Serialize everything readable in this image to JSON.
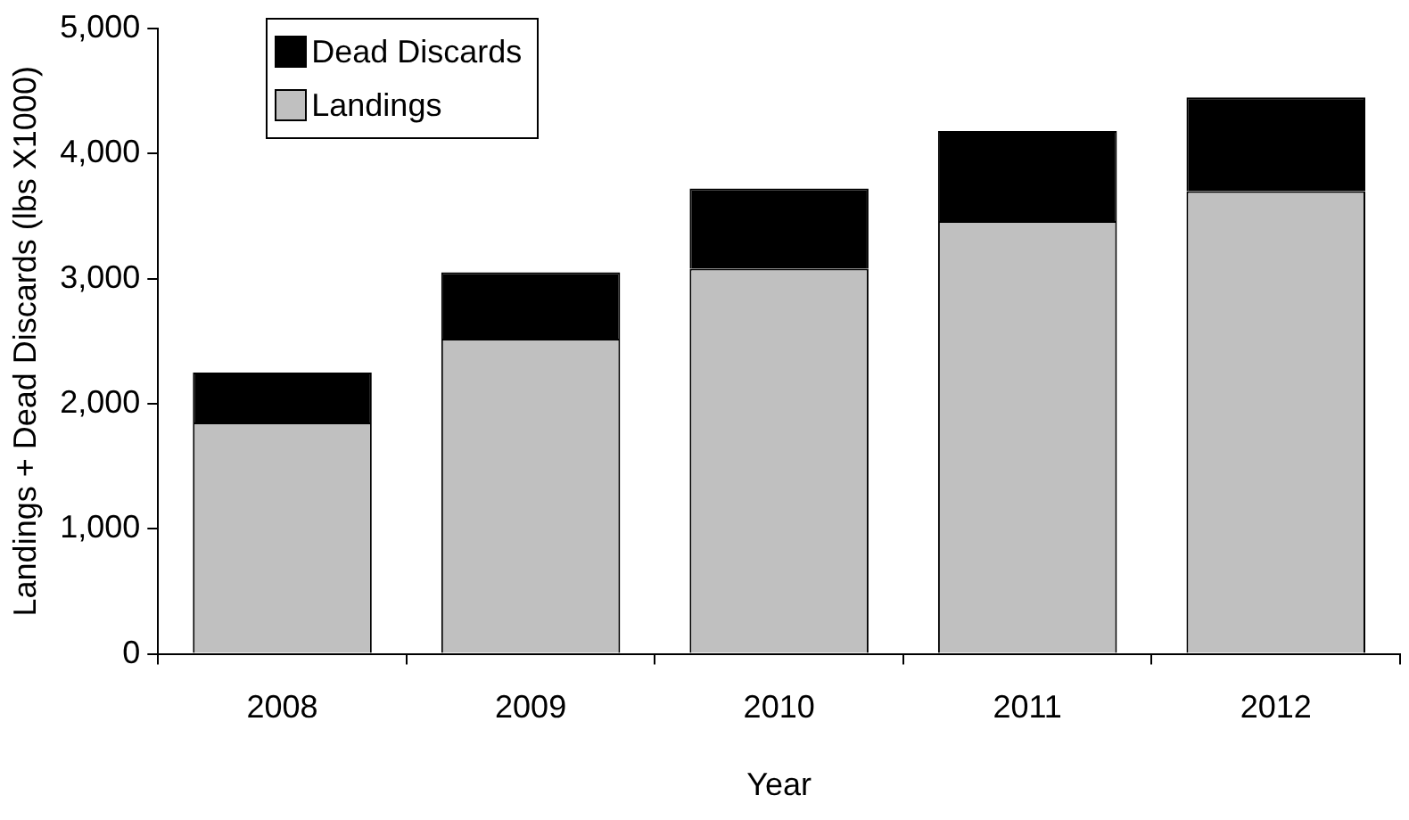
{
  "chart_data": {
    "type": "bar",
    "stacked": true,
    "xlabel": "Year",
    "ylabel": "Landings + Dead Discards (lbs X1000)",
    "categories": [
      "2008",
      "2009",
      "2010",
      "2011",
      "2012"
    ],
    "series": [
      {
        "name": "Landings",
        "color": "#c0c0c0",
        "values": [
          1850,
          2520,
          3080,
          3460,
          3700
        ]
      },
      {
        "name": "Dead Discards",
        "color": "#000000",
        "values": [
          400,
          530,
          640,
          720,
          750
        ]
      }
    ],
    "ylim": [
      0,
      5000
    ],
    "yticks": [
      {
        "value": 0,
        "label": "0"
      },
      {
        "value": 1000,
        "label": "1,000"
      },
      {
        "value": 2000,
        "label": "2,000"
      },
      {
        "value": 3000,
        "label": "3,000"
      },
      {
        "value": 4000,
        "label": "4,000"
      },
      {
        "value": 5000,
        "label": "5,000"
      }
    ],
    "grid": false,
    "legend": "top left"
  }
}
